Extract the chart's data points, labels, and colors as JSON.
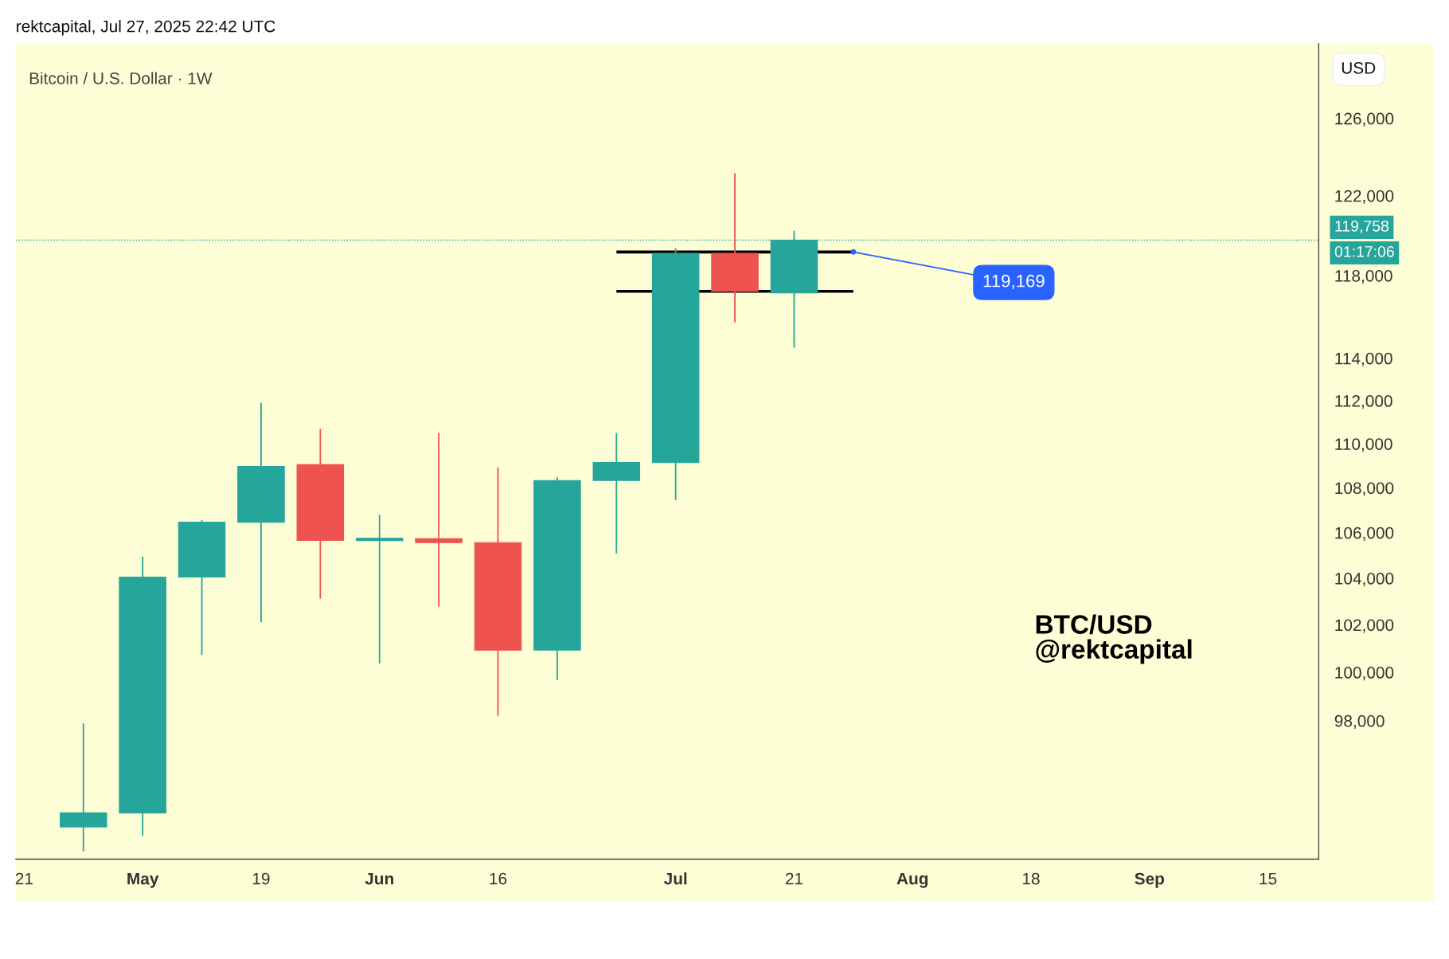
{
  "chart_data": {
    "type": "candlestick",
    "title": "Bitcoin / U.S. Dollar · 1W",
    "x": [
      "2025-04-28",
      "2025-05-05",
      "2025-05-12",
      "2025-05-19",
      "2025-05-26",
      "2025-06-02",
      "2025-06-09",
      "2025-06-16",
      "2025-06-23",
      "2025-06-30",
      "2025-07-07",
      "2025-07-14",
      "2025-07-21"
    ],
    "ohlc": [
      [
        93750,
        97900,
        92800,
        94300
      ],
      [
        94300,
        104950,
        93400,
        104050
      ],
      [
        104050,
        106550,
        100730,
        106460
      ],
      [
        106460,
        111900,
        102110,
        108970
      ],
      [
        109050,
        110690,
        103120,
        105660
      ],
      [
        105650,
        106790,
        100370,
        105750
      ],
      [
        105730,
        110500,
        102780,
        105560
      ],
      [
        105560,
        108930,
        98200,
        100930
      ],
      [
        100930,
        108480,
        99670,
        108330
      ],
      [
        108330,
        110500,
        105080,
        109150
      ],
      [
        109150,
        119350,
        107440,
        119100
      ],
      [
        119100,
        123150,
        115720,
        117230
      ],
      [
        117150,
        120230,
        114500,
        119758
      ]
    ],
    "colors": [
      "#26a69a",
      "#26a69a",
      "#26a69a",
      "#26a69a",
      "#ef5350",
      "#26a69a",
      "#ef5350",
      "#ef5350",
      "#26a69a",
      "#26a69a",
      "#26a69a",
      "#ef5350",
      "#26a69a"
    ],
    "series": [
      {
        "type": "line",
        "x": [
          "2025-06-30",
          "2025-07-28"
        ],
        "values": [
          119169,
          119169
        ],
        "color": "#000000"
      },
      {
        "type": "line",
        "x": [
          "2025-06-30",
          "2025-07-28"
        ],
        "values": [
          117230,
          117230
        ],
        "color": "#000000"
      }
    ],
    "log": true,
    "xlim": [
      "2025-04-20",
      "2025-09-21"
    ],
    "xticks": [
      {
        "value": "2025-04-21",
        "label": "21"
      },
      {
        "value": "2025-05-05",
        "label": "May"
      },
      {
        "value": "2025-05-19",
        "label": "19"
      },
      {
        "value": "2025-06-02",
        "label": "Jun"
      },
      {
        "value": "2025-06-16",
        "label": "16"
      },
      {
        "value": "2025-07-07",
        "label": "Jul"
      },
      {
        "value": "2025-07-21",
        "label": "21"
      },
      {
        "value": "2025-08-04",
        "label": "Aug"
      },
      {
        "value": "2025-08-18",
        "label": "18"
      },
      {
        "value": "2025-09-01",
        "label": "Sep"
      },
      {
        "value": "2025-09-15",
        "label": "15"
      }
    ],
    "ylim": [
      92500,
      130000
    ],
    "yticks": [
      {
        "value": 98000,
        "label": "98,000"
      },
      {
        "value": 100000,
        "label": "100,000"
      },
      {
        "value": 102000,
        "label": "102,000"
      },
      {
        "value": 104000,
        "label": "104,000"
      },
      {
        "value": 106000,
        "label": "106,000"
      },
      {
        "value": 108000,
        "label": "108,000"
      },
      {
        "value": 110000,
        "label": "110,000"
      },
      {
        "value": 112000,
        "label": "112,000"
      },
      {
        "value": 114000,
        "label": "114,000"
      },
      {
        "value": 118000,
        "label": "118,000"
      },
      {
        "value": 122000,
        "label": "122,000"
      },
      {
        "value": 126000,
        "label": "126,000"
      }
    ],
    "ref_lines": [
      {
        "axis": "y",
        "value": 119758,
        "label": "119,758",
        "color": "#26a69a",
        "line_style": "dotted"
      }
    ],
    "annotations": [
      "rektcapital, Jul 27, 2025 22:42 UTC",
      "USD",
      "01:17:06",
      "BTC/USD\n@rektcapital",
      {
        "text": "119,169",
        "x": "2025-07-28",
        "y": 119169
      }
    ],
    "grid": false
  }
}
